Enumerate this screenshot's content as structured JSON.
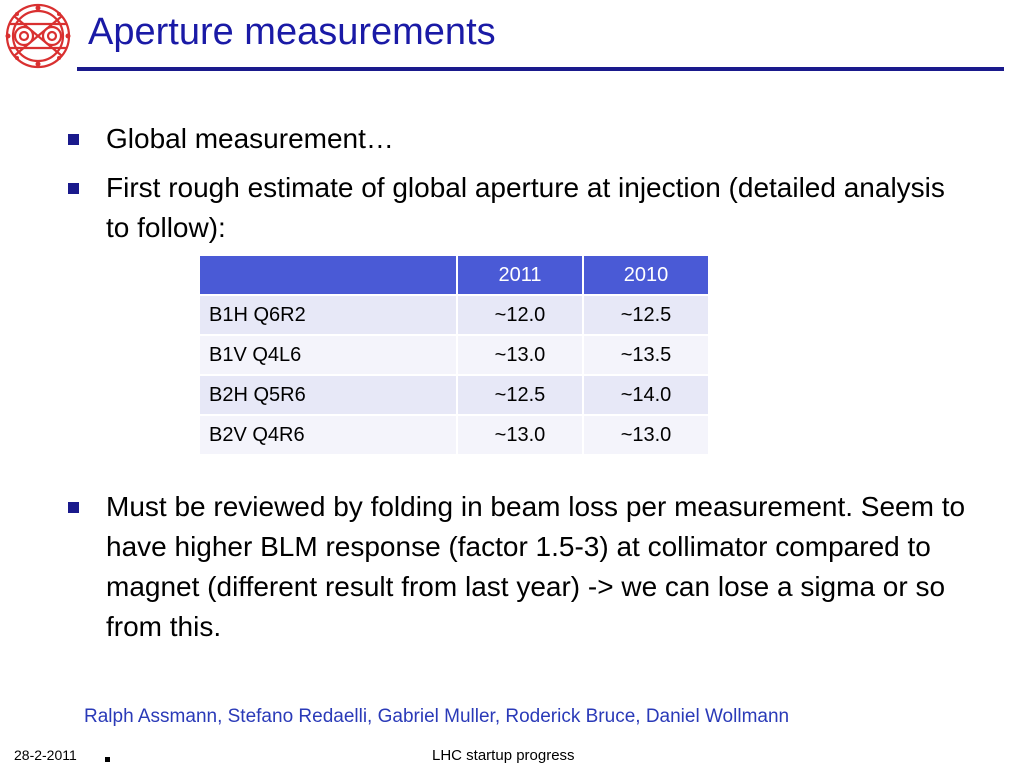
{
  "slide": {
    "title": "Aperture measurements",
    "bullets": [
      "Global measurement…",
      "First rough estimate of global aperture at injection (detailed analysis to follow):",
      "Must be reviewed by folding in beam loss per measurement. Seem to have higher BLM response (factor 1.5-3) at collimator compared to magnet (different result from last year) -> we can lose a sigma or so from this."
    ],
    "authors": "Ralph Assmann, Stefano Redaelli, Gabriel Muller, Roderick Bruce, Daniel Wollmann",
    "date": "28-2-2011",
    "footer": "LHC startup progress"
  },
  "table": {
    "headers": [
      "",
      "2011",
      "2010"
    ],
    "rows": [
      [
        "B1H Q6R2",
        "~12.0",
        "~12.5"
      ],
      [
        "B1V Q4L6",
        "~13.0",
        "~13.5"
      ],
      [
        "B2H Q5R6",
        "~12.5",
        "~14.0"
      ],
      [
        "B2V Q4R6",
        "~13.0",
        "~13.0"
      ]
    ]
  },
  "colors": {
    "title": "#1a1aa6",
    "rule": "#1a1a8c",
    "table_header": "#4a5ad6",
    "authors": "#2a3ab8"
  },
  "logo_icon": "lhc-magnet-cross-section-icon"
}
